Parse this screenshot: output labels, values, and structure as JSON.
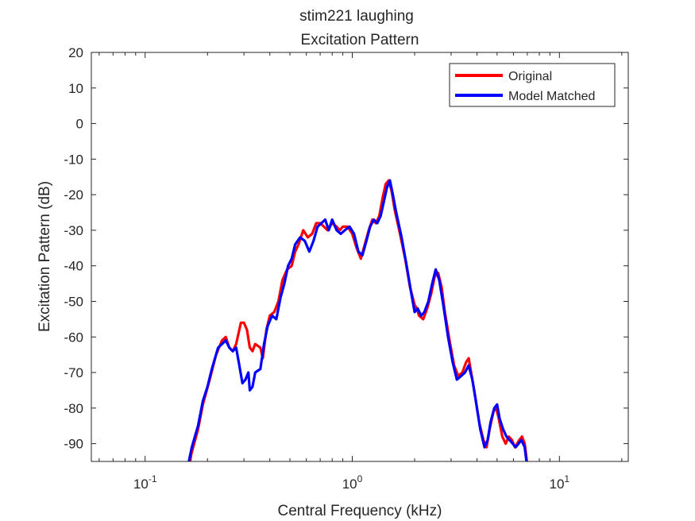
{
  "chart_data": {
    "type": "line",
    "title": "stim221 laughing",
    "subtitle": "Excitation Pattern",
    "xlabel": "Central Frequency (kHz)",
    "ylabel": "Excitation Pattern (dB)",
    "xscale": "log",
    "xlim": [
      0.055,
      21.5
    ],
    "ylim": [
      -95,
      20
    ],
    "x_ticks": [
      {
        "value": 0.1,
        "mantissa": "10",
        "exp": "-1"
      },
      {
        "value": 1,
        "mantissa": "10",
        "exp": "0"
      },
      {
        "value": 10,
        "mantissa": "10",
        "exp": "1"
      }
    ],
    "y_ticks": [
      20,
      10,
      0,
      -10,
      -20,
      -30,
      -40,
      -50,
      -60,
      -70,
      -80,
      -90
    ],
    "grid": false,
    "legend_position": "top-right",
    "series": [
      {
        "name": "Original",
        "color": "#ff0000",
        "points": [
          [
            0.16,
            -100
          ],
          [
            0.167,
            -93
          ],
          [
            0.18,
            -86
          ],
          [
            0.19,
            -79
          ],
          [
            0.205,
            -72
          ],
          [
            0.22,
            -65
          ],
          [
            0.235,
            -61
          ],
          [
            0.245,
            -60
          ],
          [
            0.255,
            -63
          ],
          [
            0.265,
            -64
          ],
          [
            0.275,
            -62
          ],
          [
            0.29,
            -56
          ],
          [
            0.3,
            -56
          ],
          [
            0.31,
            -58
          ],
          [
            0.32,
            -63
          ],
          [
            0.33,
            -64
          ],
          [
            0.34,
            -62
          ],
          [
            0.36,
            -63
          ],
          [
            0.37,
            -66
          ],
          [
            0.385,
            -58
          ],
          [
            0.4,
            -54
          ],
          [
            0.42,
            -53
          ],
          [
            0.44,
            -50
          ],
          [
            0.46,
            -44
          ],
          [
            0.485,
            -41
          ],
          [
            0.51,
            -40
          ],
          [
            0.53,
            -36
          ],
          [
            0.55,
            -34
          ],
          [
            0.58,
            -30
          ],
          [
            0.61,
            -32
          ],
          [
            0.64,
            -31
          ],
          [
            0.67,
            -28
          ],
          [
            0.7,
            -28
          ],
          [
            0.73,
            -29
          ],
          [
            0.76,
            -30
          ],
          [
            0.8,
            -28
          ],
          [
            0.84,
            -29
          ],
          [
            0.87,
            -30
          ],
          [
            0.9,
            -29
          ],
          [
            0.95,
            -29
          ],
          [
            1.0,
            -31
          ],
          [
            1.05,
            -35
          ],
          [
            1.1,
            -38
          ],
          [
            1.15,
            -34
          ],
          [
            1.2,
            -30
          ],
          [
            1.25,
            -27
          ],
          [
            1.3,
            -28
          ],
          [
            1.35,
            -26
          ],
          [
            1.4,
            -21
          ],
          [
            1.45,
            -17
          ],
          [
            1.5,
            -16
          ],
          [
            1.55,
            -19
          ],
          [
            1.6,
            -24
          ],
          [
            1.7,
            -31
          ],
          [
            1.8,
            -38
          ],
          [
            1.9,
            -46
          ],
          [
            2.0,
            -51
          ],
          [
            2.05,
            -52
          ],
          [
            2.1,
            -54
          ],
          [
            2.2,
            -55
          ],
          [
            2.3,
            -52
          ],
          [
            2.4,
            -48
          ],
          [
            2.5,
            -43
          ],
          [
            2.6,
            -42
          ],
          [
            2.7,
            -46
          ],
          [
            2.8,
            -53
          ],
          [
            2.95,
            -61
          ],
          [
            3.1,
            -68
          ],
          [
            3.25,
            -71
          ],
          [
            3.4,
            -70
          ],
          [
            3.55,
            -67
          ],
          [
            3.65,
            -66
          ],
          [
            3.75,
            -70
          ],
          [
            3.9,
            -76
          ],
          [
            4.1,
            -84
          ],
          [
            4.3,
            -89
          ],
          [
            4.45,
            -91
          ],
          [
            4.6,
            -86
          ],
          [
            4.8,
            -81
          ],
          [
            4.95,
            -80
          ],
          [
            5.1,
            -83
          ],
          [
            5.3,
            -88
          ],
          [
            5.5,
            -90
          ],
          [
            5.7,
            -88
          ],
          [
            5.9,
            -89
          ],
          [
            6.1,
            -91
          ],
          [
            6.4,
            -89
          ],
          [
            6.6,
            -88
          ],
          [
            6.8,
            -90
          ],
          [
            7.0,
            -96
          ]
        ]
      },
      {
        "name": "Model Matched",
        "color": "#0000ff",
        "points": [
          [
            0.16,
            -97
          ],
          [
            0.168,
            -91
          ],
          [
            0.18,
            -85
          ],
          [
            0.19,
            -78
          ],
          [
            0.2,
            -74
          ],
          [
            0.21,
            -69
          ],
          [
            0.225,
            -63
          ],
          [
            0.235,
            -62
          ],
          [
            0.245,
            -61
          ],
          [
            0.255,
            -63
          ],
          [
            0.265,
            -64
          ],
          [
            0.275,
            -63
          ],
          [
            0.285,
            -68
          ],
          [
            0.295,
            -73
          ],
          [
            0.305,
            -72
          ],
          [
            0.315,
            -70
          ],
          [
            0.32,
            -75
          ],
          [
            0.33,
            -74
          ],
          [
            0.34,
            -70
          ],
          [
            0.36,
            -69
          ],
          [
            0.375,
            -62
          ],
          [
            0.39,
            -57
          ],
          [
            0.41,
            -54
          ],
          [
            0.43,
            -55
          ],
          [
            0.45,
            -49
          ],
          [
            0.47,
            -45
          ],
          [
            0.49,
            -40
          ],
          [
            0.51,
            -38
          ],
          [
            0.53,
            -34
          ],
          [
            0.56,
            -32
          ],
          [
            0.59,
            -33
          ],
          [
            0.62,
            -36
          ],
          [
            0.65,
            -33
          ],
          [
            0.68,
            -29
          ],
          [
            0.71,
            -28
          ],
          [
            0.74,
            -27
          ],
          [
            0.77,
            -30
          ],
          [
            0.8,
            -27
          ],
          [
            0.84,
            -30
          ],
          [
            0.88,
            -31
          ],
          [
            0.92,
            -30
          ],
          [
            0.97,
            -29
          ],
          [
            1.02,
            -31
          ],
          [
            1.07,
            -36
          ],
          [
            1.12,
            -37
          ],
          [
            1.17,
            -33
          ],
          [
            1.22,
            -29
          ],
          [
            1.27,
            -27
          ],
          [
            1.32,
            -28
          ],
          [
            1.37,
            -26
          ],
          [
            1.42,
            -22
          ],
          [
            1.47,
            -18
          ],
          [
            1.52,
            -16
          ],
          [
            1.57,
            -20
          ],
          [
            1.63,
            -25
          ],
          [
            1.73,
            -32
          ],
          [
            1.83,
            -40
          ],
          [
            1.93,
            -48
          ],
          [
            2.0,
            -53
          ],
          [
            2.07,
            -52
          ],
          [
            2.15,
            -54
          ],
          [
            2.23,
            -53
          ],
          [
            2.33,
            -50
          ],
          [
            2.43,
            -45
          ],
          [
            2.53,
            -41
          ],
          [
            2.63,
            -44
          ],
          [
            2.75,
            -51
          ],
          [
            2.9,
            -60
          ],
          [
            3.05,
            -67
          ],
          [
            3.2,
            -72
          ],
          [
            3.35,
            -71
          ],
          [
            3.5,
            -70
          ],
          [
            3.65,
            -68
          ],
          [
            3.8,
            -72
          ],
          [
            3.95,
            -78
          ],
          [
            4.15,
            -86
          ],
          [
            4.35,
            -91
          ],
          [
            4.5,
            -89
          ],
          [
            4.65,
            -84
          ],
          [
            4.85,
            -80
          ],
          [
            5.0,
            -79
          ],
          [
            5.15,
            -83
          ],
          [
            5.35,
            -86
          ],
          [
            5.55,
            -88
          ],
          [
            5.75,
            -89
          ],
          [
            5.95,
            -90
          ],
          [
            6.15,
            -91
          ],
          [
            6.35,
            -90
          ],
          [
            6.55,
            -89
          ],
          [
            6.8,
            -91
          ],
          [
            7.0,
            -97
          ]
        ]
      }
    ]
  }
}
